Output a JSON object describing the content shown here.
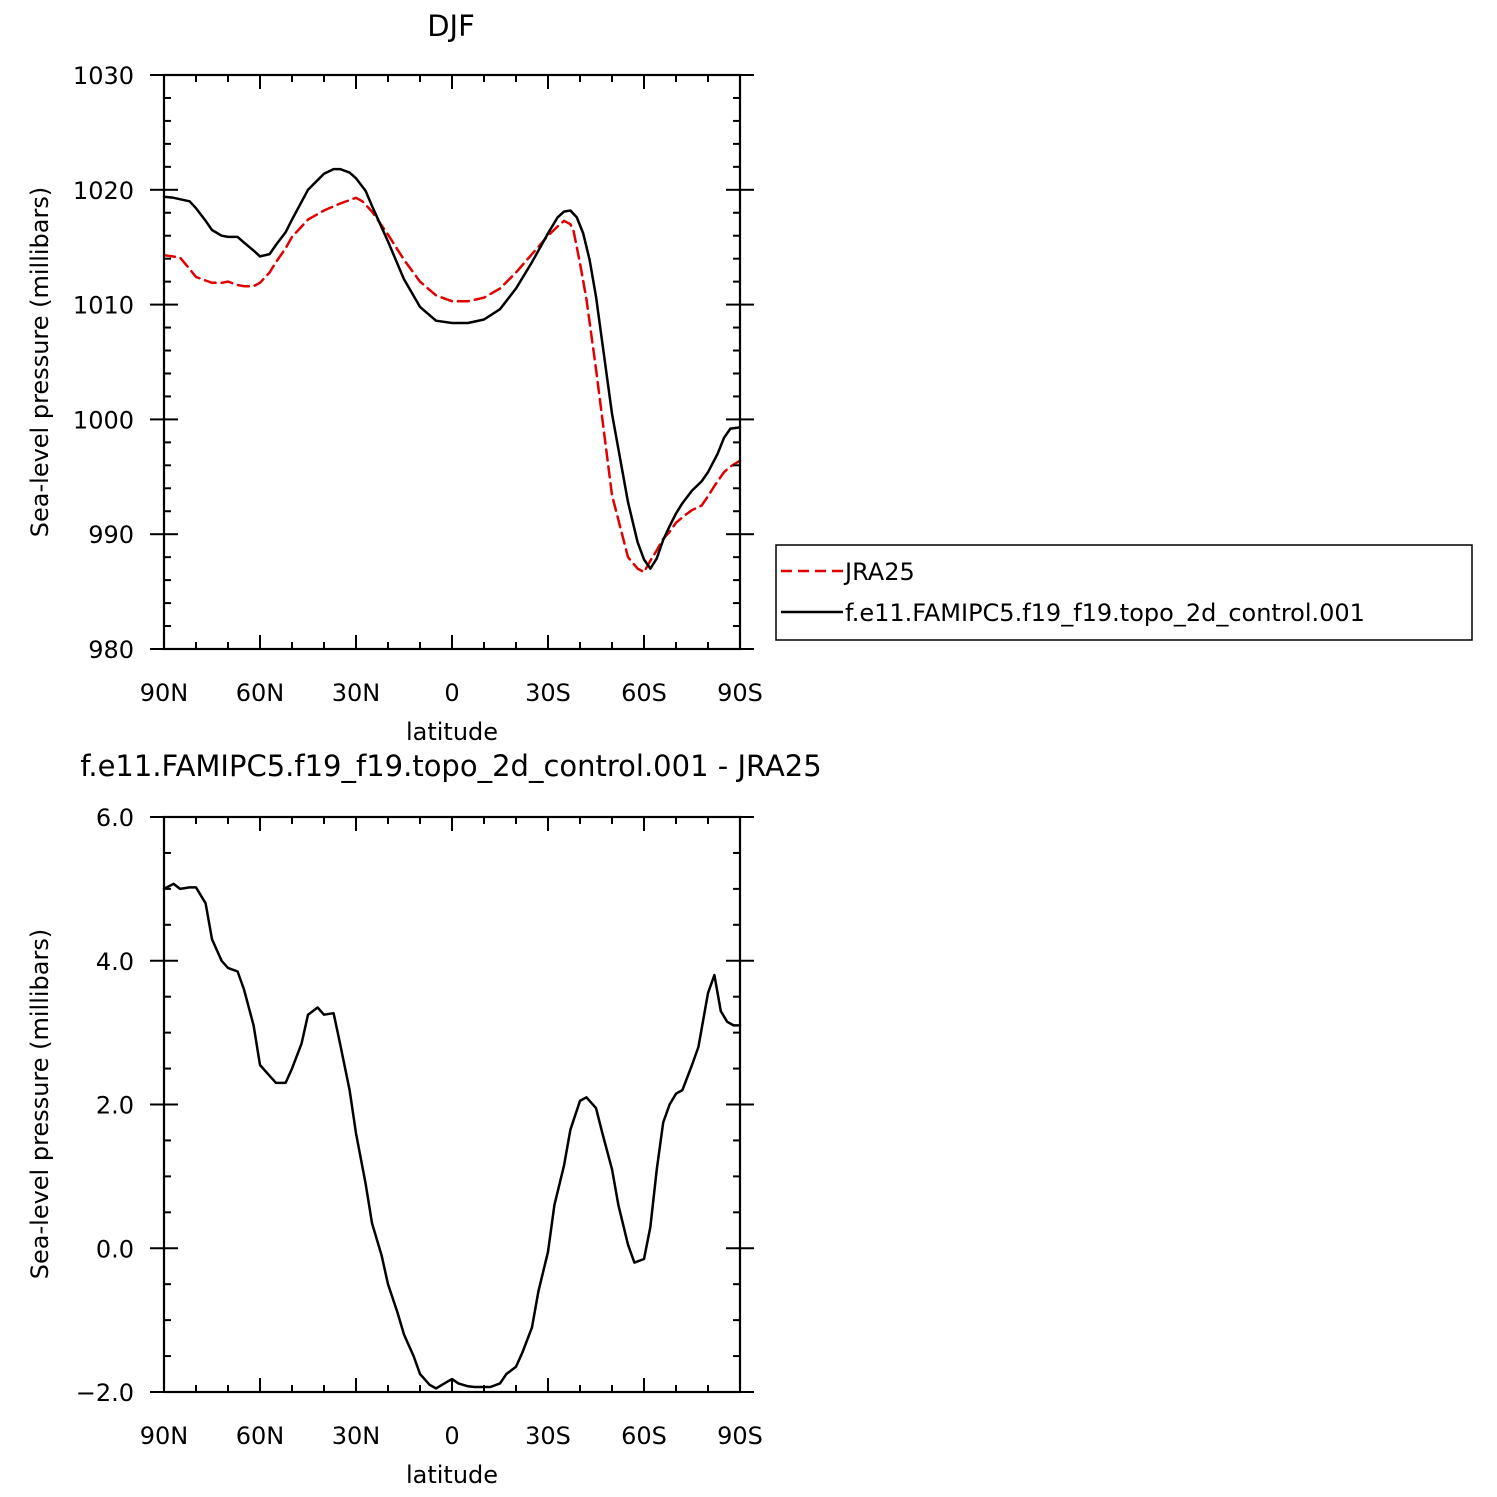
{
  "colors": {
    "model": "#000000",
    "obs": "#e00000",
    "background": "#ffffff"
  },
  "chart_data": [
    {
      "type": "line",
      "title": "DJF",
      "xlabel": "latitude",
      "ylabel": "Sea-level pressure (millibars)",
      "xlim": [
        90,
        -90
      ],
      "ylim": [
        980,
        1030
      ],
      "xticks": [
        90,
        60,
        30,
        0,
        -30,
        -60,
        -90
      ],
      "xtick_labels": [
        "90N",
        "60N",
        "30N",
        "0",
        "30S",
        "60S",
        "90S"
      ],
      "yticks": [
        980,
        990,
        1000,
        1010,
        1020,
        1030
      ],
      "ytick_labels": [
        "980",
        "990",
        "1000",
        "1010",
        "1020",
        "1030"
      ],
      "legend": {
        "placement": "right",
        "entries": [
          "JRA25",
          "f.e11.FAMIPC5.f19_f19.topo_2d_control.001"
        ]
      },
      "series": [
        {
          "name": "JRA25",
          "style": "dashed",
          "color": "#e00000",
          "x": [
            90,
            85,
            82,
            80,
            77,
            75,
            72,
            70,
            67,
            65,
            62,
            60,
            57,
            55,
            52,
            50,
            45,
            40,
            35,
            30,
            28,
            25,
            20,
            15,
            10,
            5,
            0,
            -5,
            -10,
            -15,
            -20,
            -25,
            -30,
            -33,
            -35,
            -37,
            -38,
            -40,
            -42,
            -45,
            -50,
            -55,
            -58,
            -60,
            -62,
            -64,
            -66,
            -68,
            -70,
            -73,
            -75,
            -78,
            -80,
            -82,
            -85,
            -87,
            -90
          ],
          "y": [
            1014.3,
            1014.1,
            1013.1,
            1012.4,
            1012.1,
            1011.9,
            1011.9,
            1012.0,
            1011.7,
            1011.6,
            1011.6,
            1011.9,
            1012.8,
            1013.7,
            1014.9,
            1015.9,
            1017.4,
            1018.2,
            1018.8,
            1019.3,
            1019.0,
            1018.1,
            1016.1,
            1013.9,
            1012.0,
            1010.8,
            1010.3,
            1010.3,
            1010.6,
            1011.4,
            1012.8,
            1014.4,
            1016.0,
            1016.8,
            1017.3,
            1017.0,
            1016.4,
            1013.6,
            1010.5,
            1004.4,
            993.4,
            988.0,
            987.0,
            986.7,
            987.7,
            988.6,
            989.6,
            990.2,
            991.0,
            991.7,
            992.1,
            992.5,
            993.3,
            994.2,
            995.4,
            995.9,
            996.4
          ]
        },
        {
          "name": "f.e11.FAMIPC5.f19_f19.topo_2d_control.001",
          "style": "solid",
          "color": "#000000",
          "x": [
            90,
            87,
            82,
            80,
            77,
            75,
            72,
            70,
            67,
            65,
            62,
            60,
            57,
            55,
            52,
            50,
            45,
            40,
            37,
            35,
            32,
            30,
            27,
            25,
            20,
            15,
            10,
            5,
            0,
            -5,
            -10,
            -15,
            -20,
            -25,
            -30,
            -33,
            -35,
            -37,
            -39,
            -41,
            -43,
            -45,
            -50,
            -55,
            -58,
            -60,
            -62,
            -64,
            -66,
            -68,
            -70,
            -72,
            -75,
            -78,
            -80,
            -83,
            -85,
            -87,
            -90
          ],
          "y": [
            1019.4,
            1019.3,
            1019.0,
            1018.4,
            1017.3,
            1016.5,
            1016.0,
            1015.9,
            1015.9,
            1015.4,
            1014.7,
            1014.2,
            1014.4,
            1015.2,
            1016.3,
            1017.4,
            1020.0,
            1021.4,
            1021.8,
            1021.8,
            1021.5,
            1021.0,
            1019.9,
            1018.6,
            1015.5,
            1012.2,
            1009.8,
            1008.6,
            1008.4,
            1008.4,
            1008.7,
            1009.6,
            1011.4,
            1013.7,
            1016.2,
            1017.6,
            1018.1,
            1018.2,
            1017.6,
            1016.2,
            1013.9,
            1010.7,
            1000.5,
            992.8,
            989.3,
            987.8,
            987.0,
            987.9,
            989.5,
            990.7,
            991.8,
            992.7,
            993.8,
            994.6,
            995.4,
            997.0,
            998.4,
            999.2,
            999.3
          ]
        }
      ]
    },
    {
      "type": "line",
      "title": "f.e11.FAMIPC5.f19_f19.topo_2d_control.001 - JRA25",
      "xlabel": "latitude",
      "ylabel": "Sea-level pressure (millibars)",
      "xlim": [
        90,
        -90
      ],
      "ylim": [
        -2.0,
        6.0
      ],
      "xticks": [
        90,
        60,
        30,
        0,
        -30,
        -60,
        -90
      ],
      "xtick_labels": [
        "90N",
        "60N",
        "30N",
        "0",
        "30S",
        "60S",
        "90S"
      ],
      "yticks": [
        -2.0,
        0.0,
        2.0,
        4.0,
        6.0
      ],
      "ytick_labels": [
        "−2.0",
        "0.0",
        "2.0",
        "4.0",
        "6.0"
      ],
      "series": [
        {
          "name": "",
          "style": "solid",
          "color": "#000000",
          "x": [
            90,
            87,
            85,
            82,
            80,
            77,
            75,
            72,
            70,
            67,
            65,
            62,
            60,
            57,
            55,
            52,
            50,
            47,
            45,
            42,
            40,
            37,
            35,
            32,
            30,
            27,
            25,
            22,
            20,
            17,
            15,
            12,
            10,
            7,
            5,
            2,
            0,
            -2,
            -5,
            -7,
            -10,
            -12,
            -15,
            -17,
            -20,
            -22,
            -25,
            -27,
            -30,
            -32,
            -35,
            -37,
            -40,
            -42,
            -45,
            -47,
            -50,
            -52,
            -55,
            -57,
            -60,
            -62,
            -64,
            -66,
            -68,
            -70,
            -72,
            -75,
            -77,
            -80,
            -82,
            -84,
            -86,
            -88,
            -90
          ],
          "y": [
            5.0,
            5.07,
            5.0,
            5.02,
            5.02,
            4.8,
            4.3,
            4.0,
            3.9,
            3.85,
            3.6,
            3.1,
            2.55,
            2.4,
            2.3,
            2.3,
            2.5,
            2.85,
            3.25,
            3.35,
            3.25,
            3.27,
            2.85,
            2.2,
            1.6,
            0.9,
            0.35,
            -0.1,
            -0.5,
            -0.9,
            -1.2,
            -1.5,
            -1.75,
            -1.9,
            -1.95,
            -1.87,
            -1.82,
            -1.88,
            -1.92,
            -1.93,
            -1.93,
            -1.93,
            -1.88,
            -1.75,
            -1.65,
            -1.45,
            -1.1,
            -0.6,
            -0.05,
            0.6,
            1.15,
            1.65,
            2.05,
            2.1,
            1.95,
            1.6,
            1.1,
            0.6,
            0.05,
            -0.2,
            -0.15,
            0.3,
            1.1,
            1.75,
            2.0,
            2.15,
            2.2,
            2.55,
            2.8,
            3.55,
            3.8,
            3.3,
            3.15,
            3.1,
            3.1
          ]
        }
      ]
    }
  ]
}
